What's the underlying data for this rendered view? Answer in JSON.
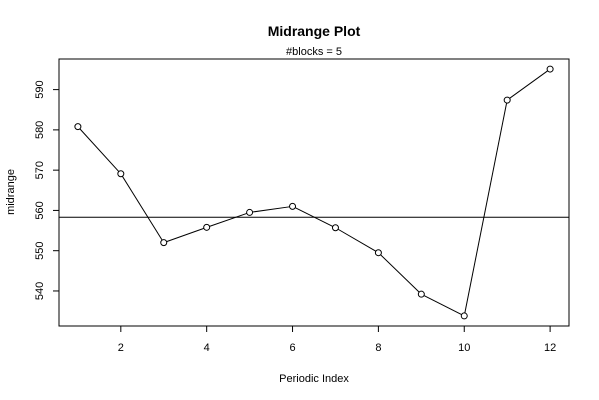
{
  "chart_data": {
    "type": "line",
    "title": "Midrange Plot",
    "subtitle": "#blocks =  5",
    "xlabel": "Periodic Index",
    "ylabel": "midrange",
    "x": [
      1,
      2,
      3,
      4,
      5,
      6,
      7,
      8,
      9,
      10,
      11,
      12
    ],
    "values": [
      580.8,
      569.1,
      552.0,
      555.8,
      559.5,
      561.0,
      555.7,
      549.5,
      539.2,
      533.8,
      587.4,
      595.1
    ],
    "reference_line": 558.3,
    "xlim": [
      0.56,
      12.44
    ],
    "ylim": [
      531.3,
      597.6
    ],
    "xticks": [
      2,
      4,
      6,
      8,
      10,
      12
    ],
    "yticks": [
      540,
      550,
      560,
      570,
      580,
      590
    ],
    "grid": false,
    "line_color": "#000000",
    "marker": "open-circle"
  }
}
